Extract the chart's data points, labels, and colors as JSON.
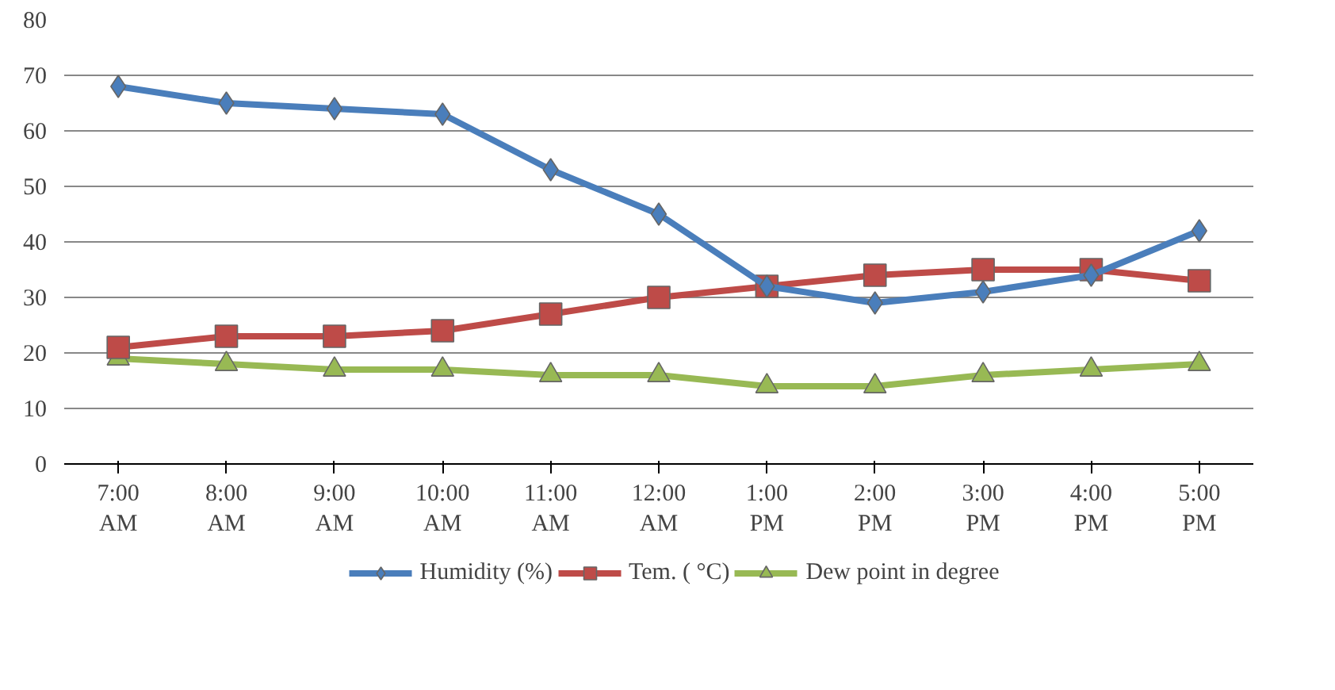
{
  "chart_data": {
    "type": "line",
    "categories": [
      "7:00\nAM",
      "8:00\nAM",
      "9:00\nAM",
      "10:00\nAM",
      "11:00\nAM",
      "12:00\nAM",
      "1:00\nPM",
      "2:00\nPM",
      "3:00\nPM",
      "4:00\nPM",
      "5:00\nPM"
    ],
    "series": [
      {
        "name": "Humidity (%)",
        "color": "#4a7ebb",
        "marker": "diamond",
        "values": [
          68,
          65,
          64,
          63,
          53,
          45,
          32,
          29,
          31,
          34,
          42
        ]
      },
      {
        "name": "Tem. ( °C)",
        "color": "#be4b48",
        "marker": "square",
        "values": [
          21,
          23,
          23,
          24,
          27,
          30,
          32,
          34,
          35,
          35,
          33
        ]
      },
      {
        "name": "Dew point in degree",
        "color": "#98b954",
        "marker": "triangle",
        "values": [
          19,
          18,
          17,
          17,
          16,
          16,
          14,
          14,
          16,
          17,
          18
        ]
      }
    ],
    "ylim": [
      0,
      80
    ],
    "yticks": [
      0,
      10,
      20,
      30,
      40,
      50,
      60,
      70,
      80
    ],
    "grid": "y",
    "legend": "bottom"
  }
}
